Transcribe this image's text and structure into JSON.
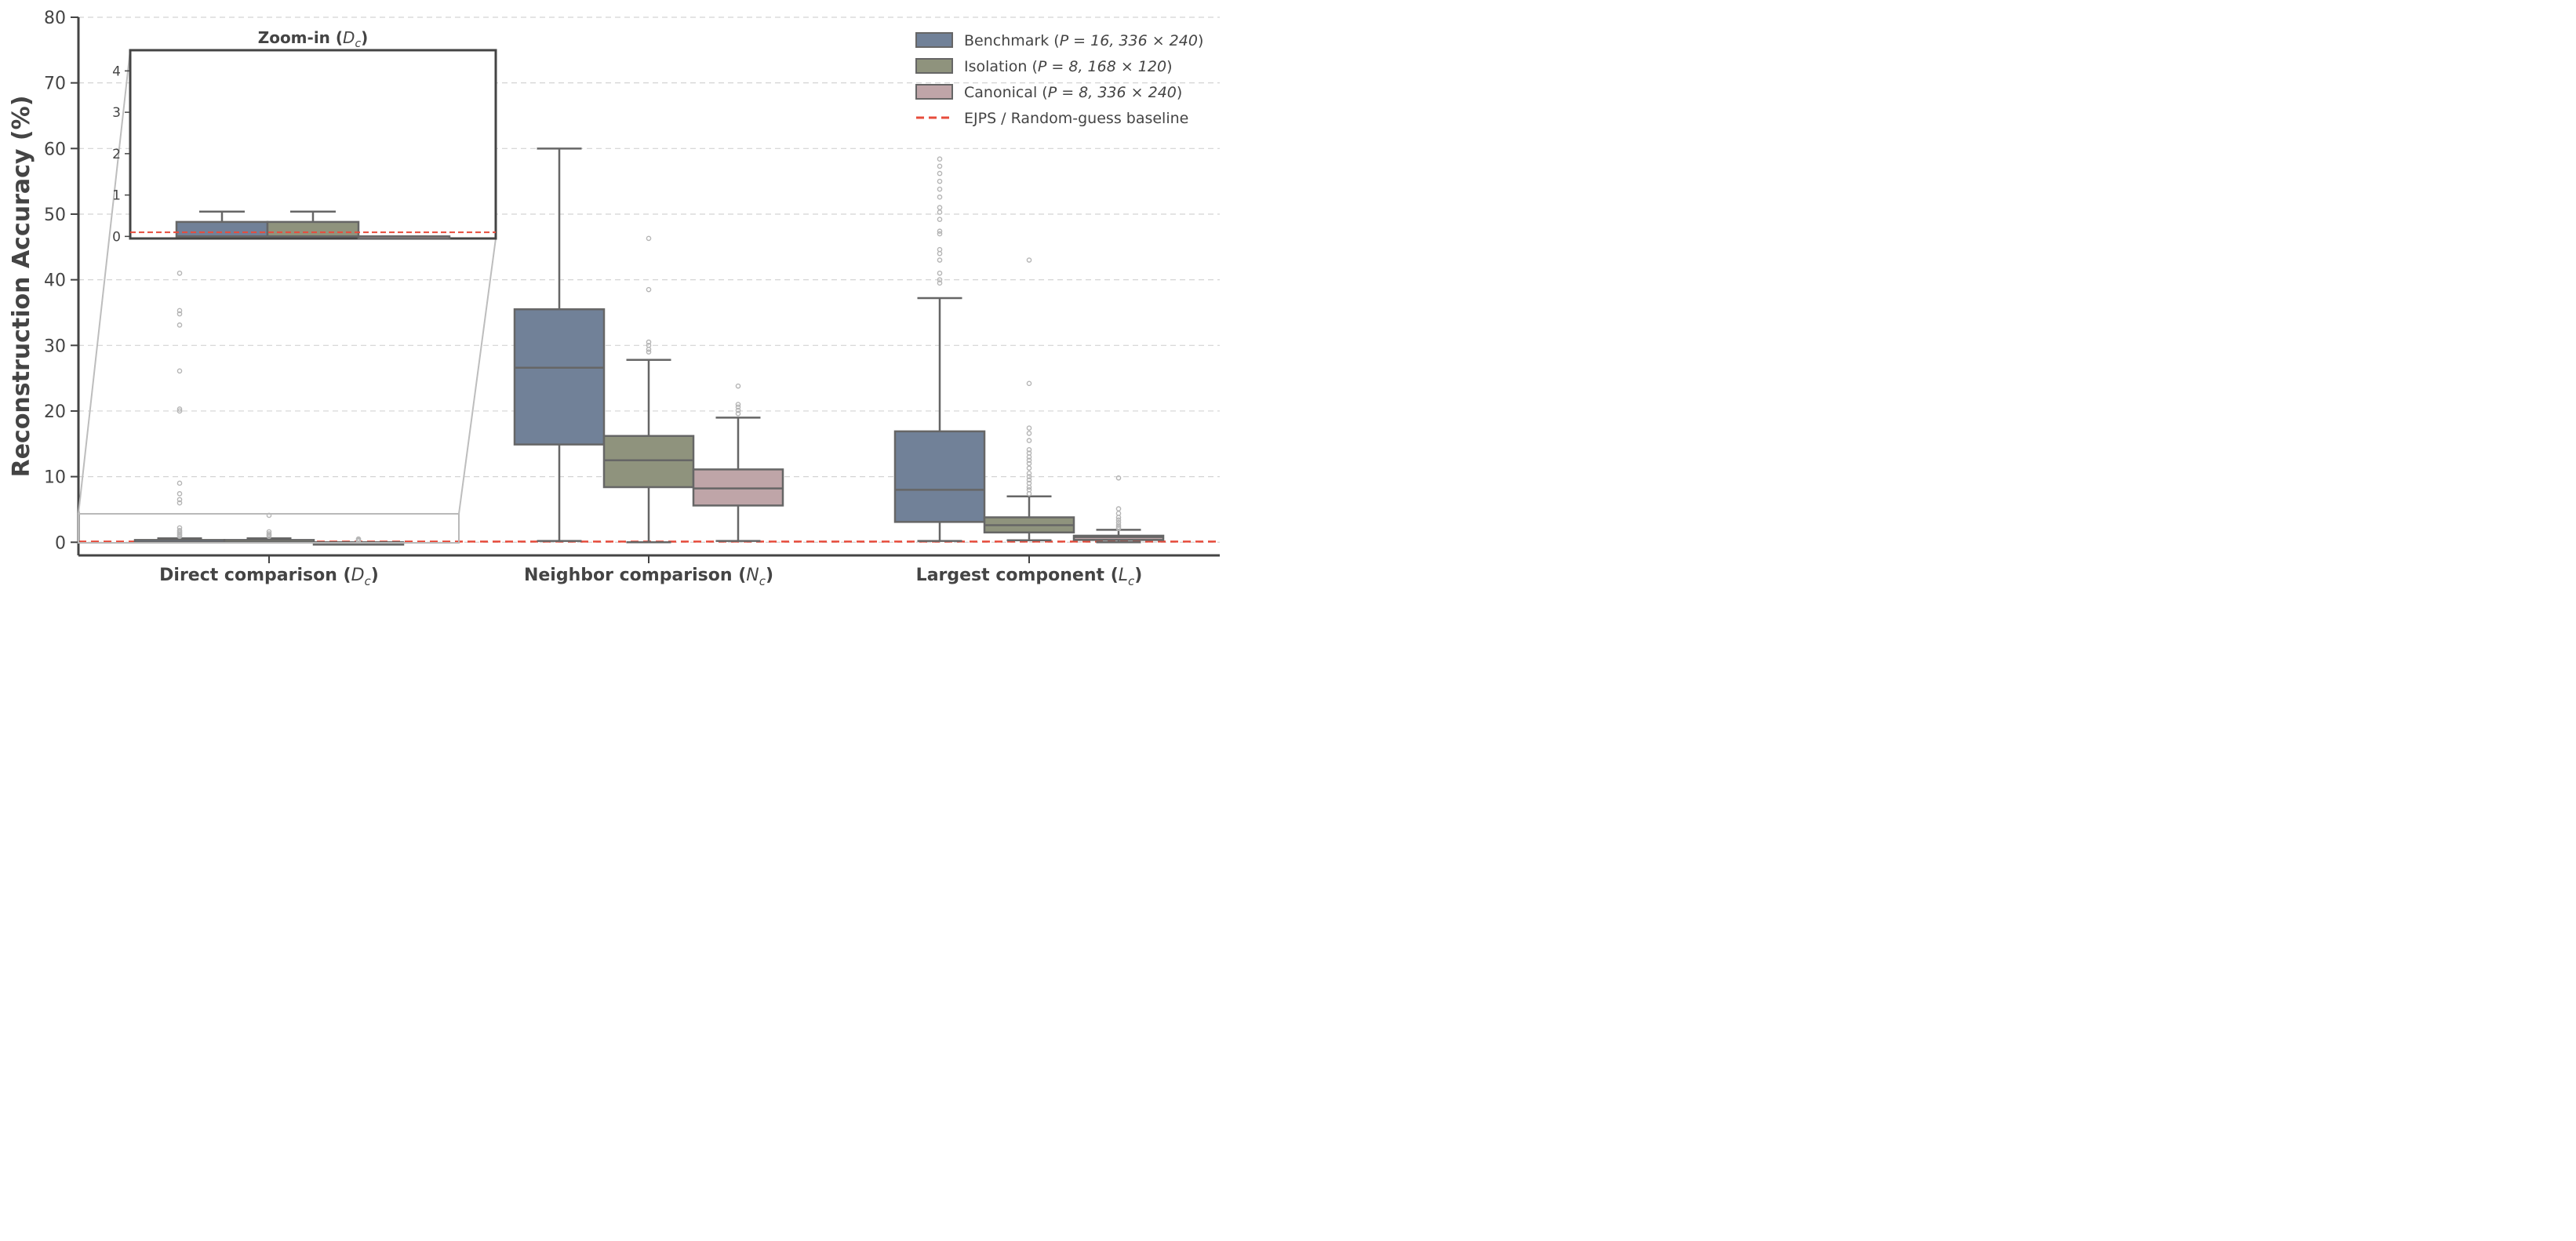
{
  "colors": {
    "benchmark": "#718198",
    "isolation": "#8f937d",
    "canonical": "#bfa5a8",
    "baseline": "#e74c3c",
    "box_edge": "#666666",
    "grid": "#d4d4d4",
    "axis": "#444444"
  },
  "chart_data": {
    "type": "box",
    "ylabel": "Reconstruction Accuracy (%)",
    "ylim": [
      -2,
      80
    ],
    "yticks": [
      0,
      10,
      20,
      30,
      40,
      50,
      60,
      70,
      80
    ],
    "grid": "horizontal-dashed",
    "baseline": {
      "value": 0.1,
      "label": "EJPS / Random-guess baseline"
    },
    "categories": [
      "Direct comparison (D_c)",
      "Neighbor comparison (N_c)",
      "Largest component (L_c)"
    ],
    "category_labels": [
      {
        "main": "Direct comparison (",
        "sym": "D",
        "sub": "c",
        "close": ")"
      },
      {
        "main": "Neighbor comparison (",
        "sym": "N",
        "sub": "c",
        "close": ")"
      },
      {
        "main": "Largest component (",
        "sym": "L",
        "sub": "c",
        "close": ")"
      }
    ],
    "legend": {
      "position": "top-right",
      "entries": [
        {
          "pre": "Benchmark (",
          "math": "P = 16, 336 × 240",
          "post": ")"
        },
        {
          "pre": "Isolation (",
          "math": "P = 8, 168 × 120",
          "post": ")"
        },
        {
          "pre": "Canonical (",
          "math": "P = 8, 336 × 240",
          "post": ")"
        },
        {
          "pre": "",
          "math": "",
          "post": "EJPS / Random-guess baseline"
        }
      ]
    },
    "series": [
      {
        "name": "Benchmark (P = 16, 336 × 240)",
        "color_key": "benchmark",
        "boxes": [
          {
            "whisker_low": 0,
            "q1": 0,
            "median": 0,
            "q3": 0.35,
            "whisker_high": 0.6,
            "outliers": [
              0.9,
              1.0,
              1.2,
              1.4,
              1.6,
              1.8,
              2.2,
              6.0,
              6.5,
              7.4,
              9.0,
              20.0,
              20.3,
              26.1,
              33.1,
              34.8,
              35.3,
              41.0
            ]
          },
          {
            "whisker_low": 0.2,
            "q1": 14.9,
            "median": 26.6,
            "q3": 35.5,
            "whisker_high": 60.0,
            "outliers": []
          },
          {
            "whisker_low": 0.2,
            "q1": 3.1,
            "median": 8.0,
            "q3": 16.9,
            "whisker_high": 37.2,
            "outliers": [
              39.5,
              40.0,
              41.0,
              43.0,
              44.0,
              44.6,
              47.0,
              47.4,
              49.2,
              50.3,
              51.0,
              52.6,
              53.8,
              55.0,
              56.2,
              57.3,
              58.4
            ]
          }
        ]
      },
      {
        "name": "Isolation (P = 8, 168 × 120)",
        "color_key": "isolation",
        "boxes": [
          {
            "whisker_low": 0,
            "q1": 0,
            "median": 0,
            "q3": 0.35,
            "whisker_high": 0.6,
            "outliers": [
              0.9,
              1.1,
              1.3,
              1.6,
              4.1
            ]
          },
          {
            "whisker_low": 0,
            "q1": 8.4,
            "median": 12.5,
            "q3": 16.2,
            "whisker_high": 27.8,
            "outliers": [
              29.0,
              29.4,
              30.0,
              30.5,
              38.5,
              46.3
            ]
          },
          {
            "whisker_low": 0.3,
            "q1": 1.5,
            "median": 2.6,
            "q3": 3.8,
            "whisker_high": 7.0,
            "outliers": [
              7.4,
              8.0,
              8.4,
              9.0,
              9.5,
              10.0,
              10.5,
              11.3,
              12.0,
              12.5,
              13.0,
              13.6,
              14.1,
              15.5,
              16.6,
              17.4,
              24.2,
              43.0
            ]
          }
        ]
      },
      {
        "name": "Canonical (P = 8, 336 × 240)",
        "color_key": "canonical",
        "boxes": [
          {
            "whisker_low": 0,
            "q1": 0,
            "median": 0,
            "q3": 0,
            "whisker_high": 0,
            "outliers": [
              0.2,
              0.35,
              0.5
            ]
          },
          {
            "whisker_low": 0.2,
            "q1": 5.6,
            "median": 8.2,
            "q3": 11.1,
            "whisker_high": 19.0,
            "outliers": [
              19.6,
              20.1,
              20.6,
              21.0,
              23.8
            ]
          },
          {
            "whisker_low": 0,
            "q1": 0.35,
            "median": 0.8,
            "q3": 1.0,
            "whisker_high": 1.9,
            "outliers": [
              2.1,
              2.3,
              2.6,
              3.0,
              3.4,
              3.8,
              4.4,
              5.1,
              9.8
            ]
          }
        ]
      }
    ],
    "inset": {
      "title_pre": "Zoom-in (",
      "title_sym": "D",
      "title_sub": "c",
      "title_post": ")",
      "ylim": [
        -0.05,
        4.5
      ],
      "yticks": [
        0,
        1,
        2,
        3,
        4
      ],
      "boxes": [
        {
          "series": 0,
          "whisker_low": 0,
          "q1": 0,
          "median": 0,
          "q3": 0.35,
          "whisker_high": 0.6
        },
        {
          "series": 1,
          "whisker_low": 0,
          "q1": 0,
          "median": 0,
          "q3": 0.35,
          "whisker_high": 0.6
        },
        {
          "series": 2,
          "whisker_low": 0,
          "q1": 0,
          "median": 0,
          "q3": 0,
          "whisker_high": 0
        }
      ]
    }
  }
}
